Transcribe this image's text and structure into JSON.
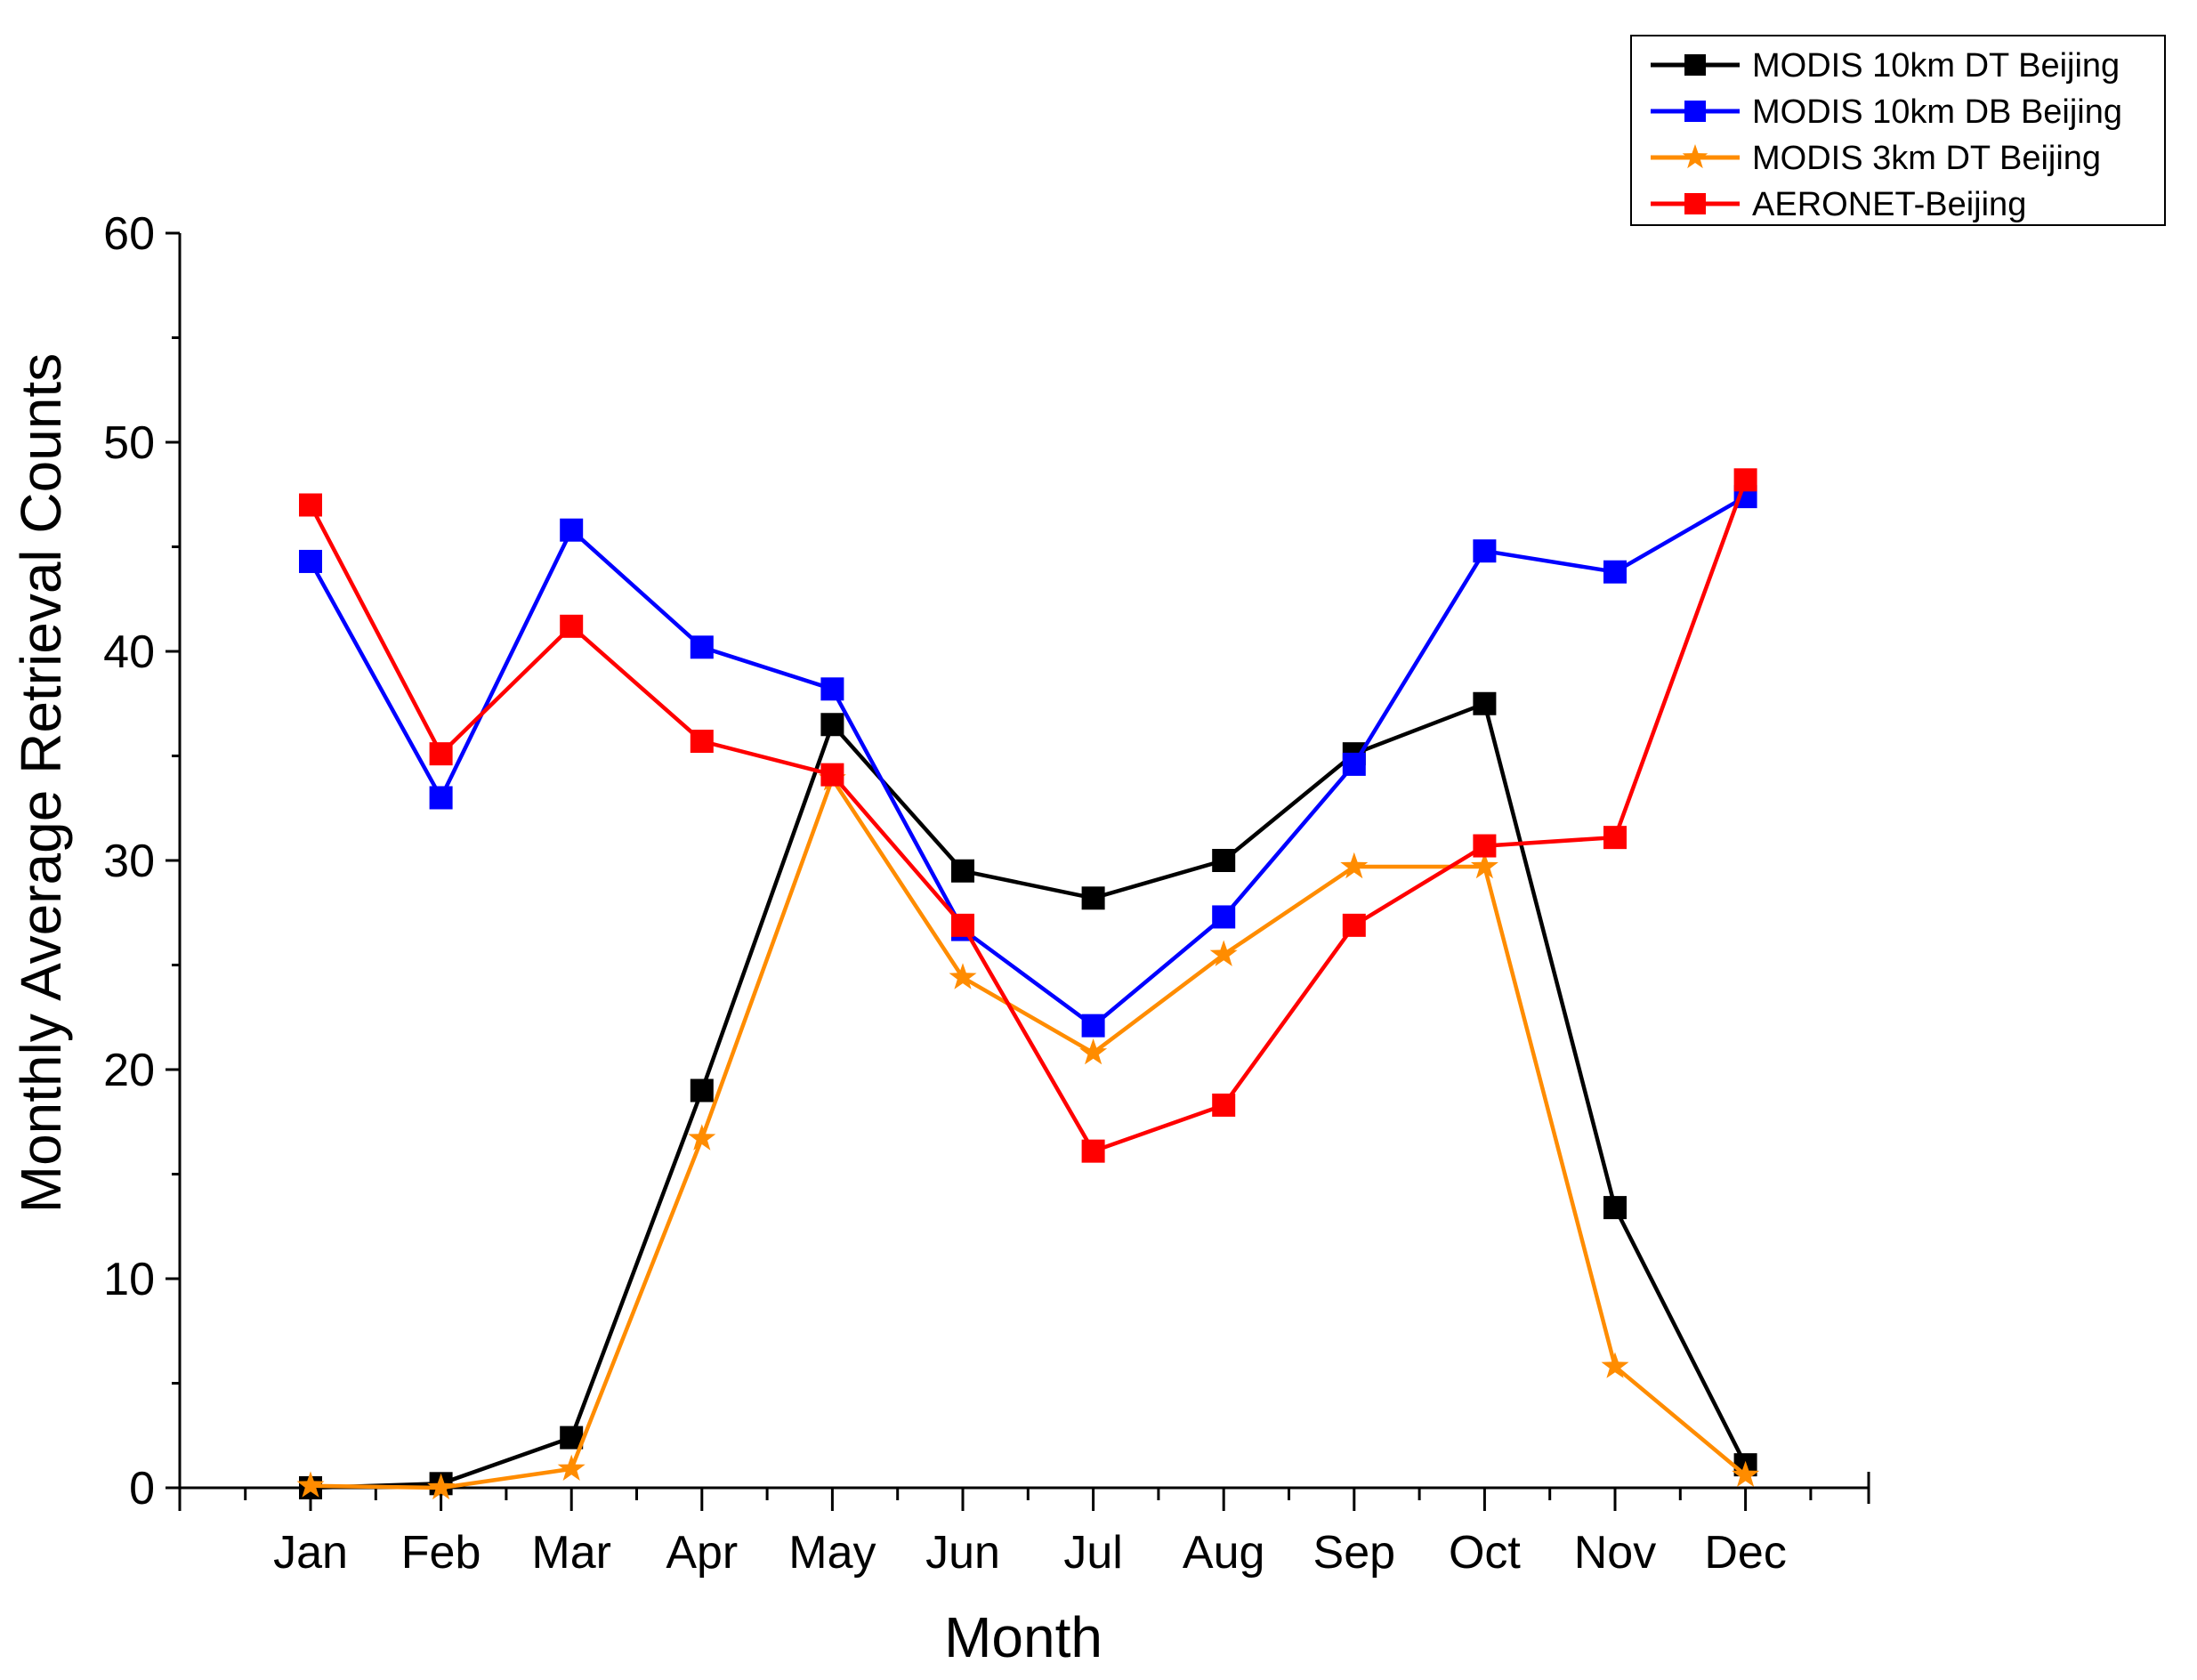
{
  "chart_data": {
    "type": "line",
    "title": "",
    "xlabel": "Month",
    "ylabel": "Monthly Average Retrieval Counts",
    "categories": [
      "Jan",
      "Feb",
      "Mar",
      "Apr",
      "May",
      "Jun",
      "Jul",
      "Aug",
      "Sep",
      "Oct",
      "Nov",
      "Dec"
    ],
    "ylim": [
      0,
      60
    ],
    "yticks": [
      0,
      10,
      20,
      30,
      40,
      50,
      60
    ],
    "y_tick_labels": [
      "0",
      "10",
      "20",
      "30",
      "40",
      "50",
      "60"
    ],
    "grid": false,
    "legend_position": "top-right",
    "series": [
      {
        "name": "MODIS 10km DT Beijing",
        "color": "#000000",
        "marker": "square",
        "values": [
          0,
          0.2,
          2.4,
          19.0,
          36.5,
          29.5,
          28.2,
          30.0,
          35.1,
          37.5,
          13.4,
          1.1
        ]
      },
      {
        "name": "MODIS 10km DB Beijing",
        "color": "#0000ff",
        "marker": "square",
        "values": [
          44.3,
          33.0,
          45.8,
          40.2,
          38.2,
          26.7,
          22.1,
          27.3,
          34.6,
          44.8,
          43.8,
          47.4
        ]
      },
      {
        "name": "MODIS 3km DT Beijing",
        "color": "#ff8c00",
        "marker": "star",
        "values": [
          0.1,
          0.0,
          0.9,
          16.7,
          33.9,
          24.4,
          20.8,
          25.5,
          29.7,
          29.7,
          5.8,
          0.6
        ]
      },
      {
        "name": "AERONET-Beijing",
        "color": "#ff0000",
        "marker": "square",
        "values": [
          47.0,
          35.1,
          41.2,
          35.7,
          34.1,
          26.9,
          16.1,
          18.3,
          26.9,
          30.7,
          31.1,
          48.2
        ]
      }
    ]
  }
}
